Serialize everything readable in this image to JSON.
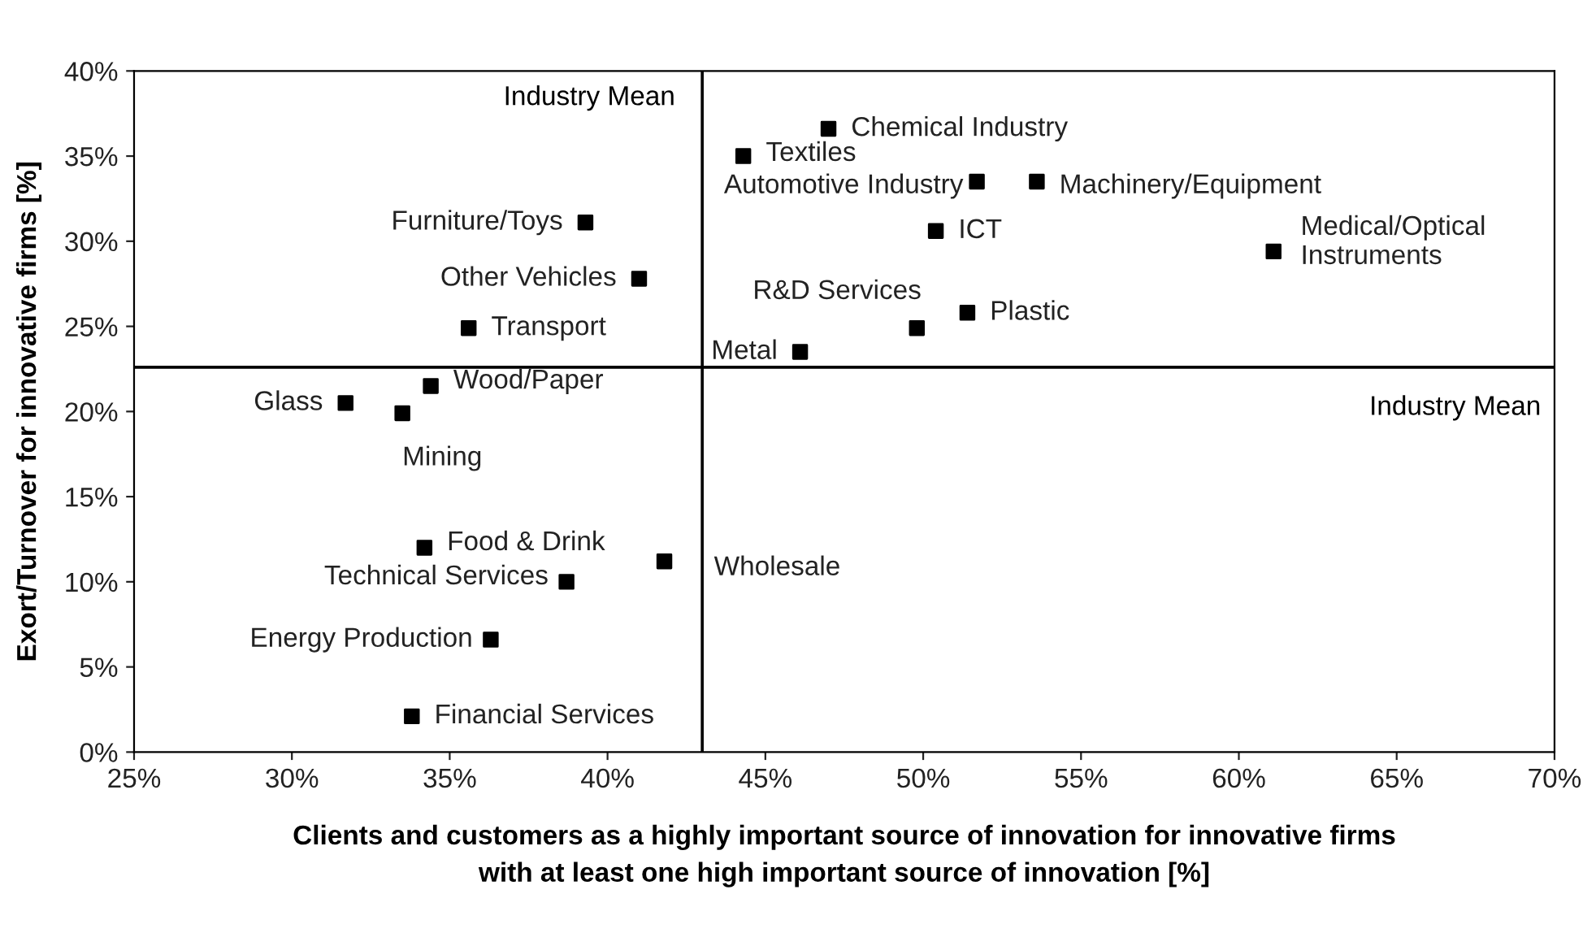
{
  "chart_data": {
    "type": "scatter",
    "xlabel": "Clients and customers as a highly important source of innovation for innovative firms\nwith at least one high important source of innovation [%]",
    "ylabel": "Exort/Turnover for innovative firms [%]",
    "series": [
      {
        "color": "#000000",
        "x": [
          47.0,
          44.3,
          51.7,
          53.6,
          39.3,
          50.4,
          61.1,
          41.0,
          35.6,
          51.4,
          49.8,
          46.1,
          31.7,
          34.4,
          33.5,
          34.2,
          41.8,
          38.7,
          36.3,
          33.8
        ],
        "values": [
          36.6,
          35.0,
          33.5,
          33.5,
          31.1,
          30.6,
          29.4,
          27.8,
          24.9,
          25.8,
          24.9,
          23.5,
          20.5,
          21.5,
          19.9,
          12.0,
          11.2,
          10.0,
          6.6,
          2.1
        ]
      }
    ],
    "marker": "square",
    "xlim": [
      25,
      70
    ],
    "ylim": [
      0,
      40
    ],
    "xticks": [
      {
        "value": 25,
        "label": "25%"
      },
      {
        "value": 30,
        "label": "30%"
      },
      {
        "value": 35,
        "label": "35%"
      },
      {
        "value": 40,
        "label": "40%"
      },
      {
        "value": 45,
        "label": "45%"
      },
      {
        "value": 50,
        "label": "50%"
      },
      {
        "value": 55,
        "label": "55%"
      },
      {
        "value": 60,
        "label": "60%"
      },
      {
        "value": 65,
        "label": "65%"
      },
      {
        "value": 70,
        "label": "70%"
      }
    ],
    "yticks": [
      {
        "value": 0,
        "label": "0%"
      },
      {
        "value": 5,
        "label": "5%"
      },
      {
        "value": 10,
        "label": "10%"
      },
      {
        "value": 15,
        "label": "15%"
      },
      {
        "value": 20,
        "label": "20%"
      },
      {
        "value": 25,
        "label": "25%"
      },
      {
        "value": 30,
        "label": "30%"
      },
      {
        "value": 35,
        "label": "35%"
      },
      {
        "value": 40,
        "label": "40%"
      }
    ],
    "ref_lines": [
      {
        "axis": "x",
        "value": 43.0,
        "label": "Industry Mean",
        "color": "#000000"
      },
      {
        "axis": "y",
        "value": 22.6,
        "label": "Industry Mean",
        "color": "#000000"
      }
    ],
    "annotations": [
      {
        "text": "Chemical Industry",
        "x": 47.0,
        "y": 36.6
      },
      {
        "text": "Textiles",
        "x": 44.3,
        "y": 35.0
      },
      {
        "text": "Automotive Industry",
        "x": 51.7,
        "y": 33.5
      },
      {
        "text": "Machinery/Equipment",
        "x": 53.6,
        "y": 33.5
      },
      {
        "text": "Furniture/Toys",
        "x": 39.3,
        "y": 31.1
      },
      {
        "text": "ICT",
        "x": 50.4,
        "y": 30.6
      },
      {
        "text": "Medical/Optical\nInstruments",
        "x": 61.1,
        "y": 29.4
      },
      {
        "text": "Other Vehicles",
        "x": 41.0,
        "y": 27.8
      },
      {
        "text": "Transport",
        "x": 35.6,
        "y": 24.9
      },
      {
        "text": "Plastic",
        "x": 51.4,
        "y": 25.8
      },
      {
        "text": "R&D Services",
        "x": 49.8,
        "y": 24.9
      },
      {
        "text": "Metal",
        "x": 46.1,
        "y": 23.5
      },
      {
        "text": "Glass",
        "x": 31.7,
        "y": 20.5
      },
      {
        "text": "Wood/Paper",
        "x": 34.4,
        "y": 21.5
      },
      {
        "text": "Mining",
        "x": 33.5,
        "y": 19.9
      },
      {
        "text": "Food & Drink",
        "x": 34.2,
        "y": 12.0
      },
      {
        "text": "Wholesale",
        "x": 41.8,
        "y": 11.2
      },
      {
        "text": "Technical Services",
        "x": 38.7,
        "y": 10.0
      },
      {
        "text": "Energy Production",
        "x": 36.3,
        "y": 6.6
      },
      {
        "text": "Financial Services",
        "x": 33.8,
        "y": 2.1
      }
    ]
  }
}
